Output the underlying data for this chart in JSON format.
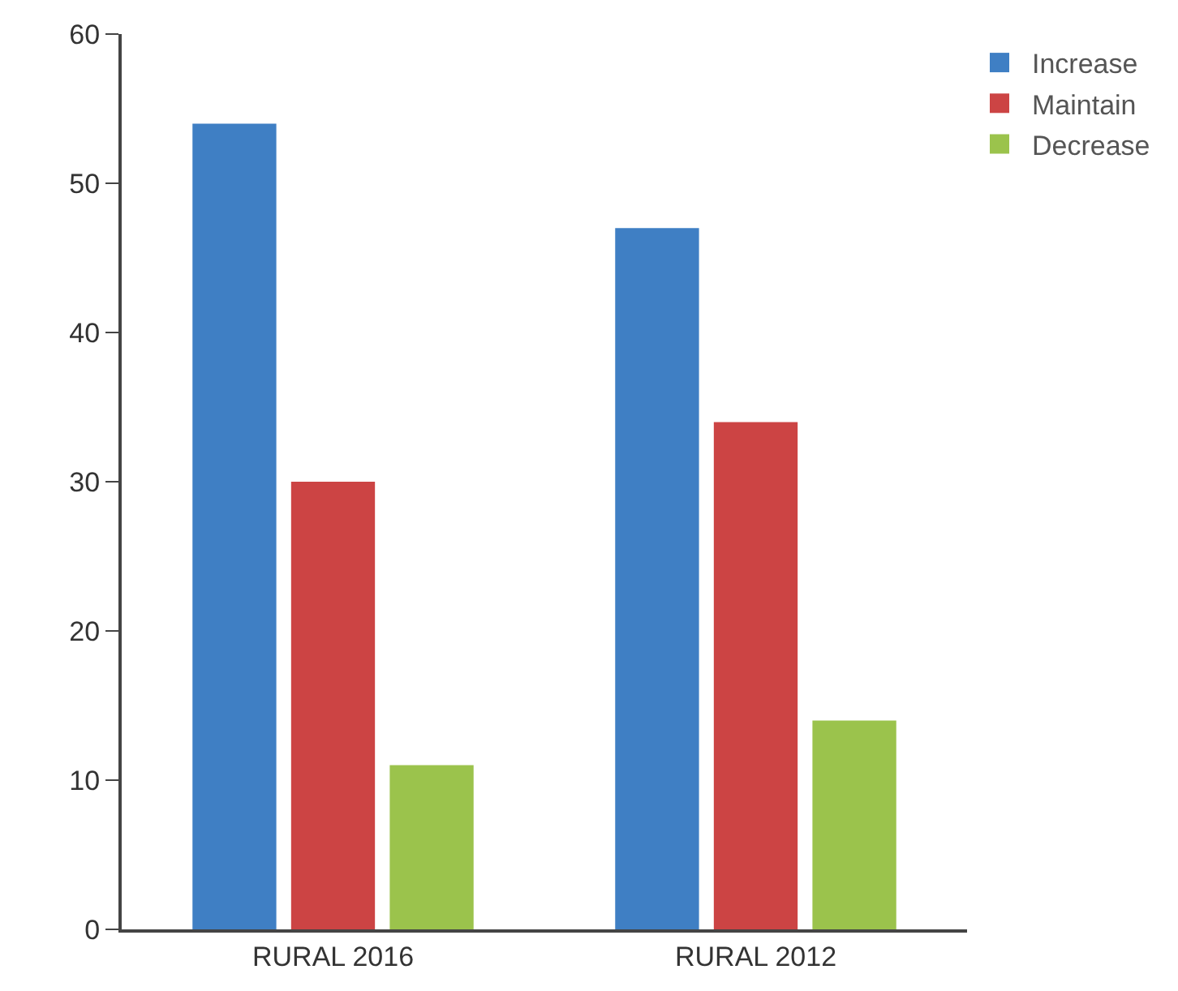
{
  "chart_data": {
    "type": "bar",
    "categories": [
      "RURAL 2016",
      "RURAL 2012"
    ],
    "series": [
      {
        "name": "Increase",
        "color": "#3f7fc4",
        "values": [
          54,
          47
        ]
      },
      {
        "name": "Maintain",
        "color": "#cc4444",
        "values": [
          30,
          34
        ]
      },
      {
        "name": "Decrease",
        "color": "#9bc34c",
        "values": [
          11,
          14
        ]
      }
    ],
    "ylim": [
      0,
      60
    ],
    "yticks": [
      0,
      10,
      20,
      30,
      40,
      50,
      60
    ],
    "legend": "top right"
  }
}
